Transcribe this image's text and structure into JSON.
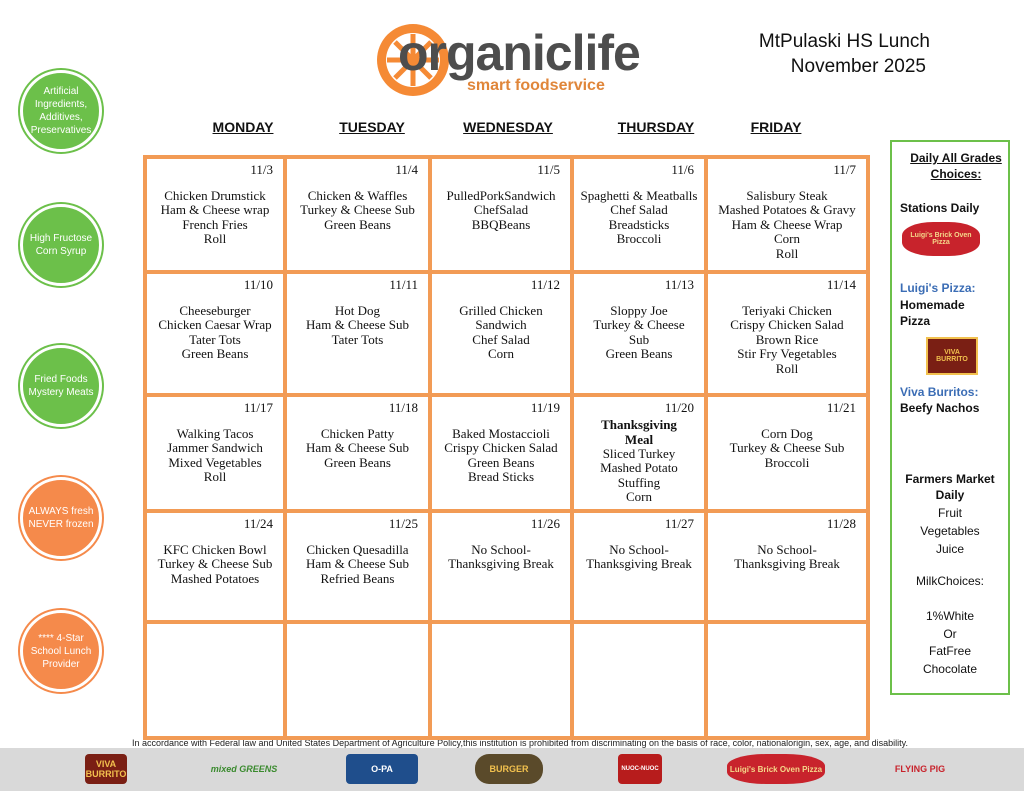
{
  "header": {
    "logo": "organiclife",
    "logo_tagline": "smart foodservice",
    "school": "MtPulaski HS Lunch",
    "month": "November 2025"
  },
  "badges": [
    "Artificial Ingredients, Additives, Preservatives",
    "High Fructose Corn Syrup",
    "Fried Foods Mystery Meats",
    "ALWAYS fresh NEVER frozen",
    "**** 4-Star School Lunch Provider"
  ],
  "calendar": {
    "days": [
      "MONDAY",
      "TUESDAY",
      "WEDNESDAY",
      "THURSDAY",
      "FRIDAY"
    ],
    "weeks": [
      [
        {
          "date": "11/3",
          "items": [
            "Chicken Drumstick",
            "Ham & Cheese wrap",
            "French Fries",
            "Roll"
          ]
        },
        {
          "date": "11/4",
          "items": [
            "Chicken & Waffles",
            "Turkey & Cheese Sub",
            "Green Beans"
          ]
        },
        {
          "date": "11/5",
          "items": [
            "PulledPorkSandwich",
            "ChefSalad",
            "BBQBeans"
          ]
        },
        {
          "date": "11/6",
          "items": [
            "Spaghetti & Meatballs",
            "Chef Salad",
            "Breadsticks",
            "Broccoli"
          ]
        },
        {
          "date": "11/7",
          "items": [
            "Salisbury Steak",
            "Mashed Potatoes & Gravy",
            "Ham & Cheese Wrap",
            "Corn",
            "Roll"
          ]
        }
      ],
      [
        {
          "date": "11/10",
          "items": [
            "Cheeseburger",
            "Chicken Caesar Wrap",
            "Tater Tots",
            "Green Beans"
          ]
        },
        {
          "date": "11/11",
          "items": [
            "Hot Dog",
            "Ham & Cheese Sub",
            "Tater Tots"
          ]
        },
        {
          "date": "11/12",
          "items": [
            "Grilled Chicken",
            "Sandwich",
            "Chef Salad",
            "Corn"
          ]
        },
        {
          "date": "11/13",
          "items": [
            "Sloppy Joe",
            "Turkey & Cheese",
            "Sub",
            "Green Beans"
          ]
        },
        {
          "date": "11/14",
          "items": [
            "Teriyaki Chicken",
            "Crispy Chicken Salad",
            "Brown Rice",
            "Stir Fry Vegetables",
            "Roll"
          ]
        }
      ],
      [
        {
          "date": "11/17",
          "items": [
            "Walking Tacos",
            "Jammer Sandwich",
            "Mixed Vegetables",
            "Roll"
          ]
        },
        {
          "date": "11/18",
          "items": [
            "Chicken Patty",
            "Ham & Cheese Sub",
            "Green Beans"
          ]
        },
        {
          "date": "11/19",
          "items": [
            "Baked Mostaccioli",
            "Crispy Chicken Salad",
            "Green Beans",
            "Bread Sticks"
          ]
        },
        {
          "date": "11/20",
          "heading": "Thanksgiving Meal",
          "items": [
            "Sliced Turkey",
            "Mashed Potato",
            "Stuffing",
            "Corn"
          ]
        },
        {
          "date": "11/21",
          "items": [
            "Corn Dog",
            "Turkey & Cheese Sub",
            "Broccoli"
          ]
        }
      ],
      [
        {
          "date": "11/24",
          "items": [
            "KFC Chicken Bowl",
            "Turkey & Cheese Sub",
            "Mashed Potatoes"
          ]
        },
        {
          "date": "11/25",
          "items": [
            "Chicken Quesadilla",
            "Ham & Cheese Sub",
            "Refried Beans"
          ]
        },
        {
          "date": "11/26",
          "items": [
            "No School-",
            "Thanksgiving Break"
          ]
        },
        {
          "date": "11/27",
          "items": [
            "No School-",
            "Thanksgiving Break"
          ]
        },
        {
          "date": "11/28",
          "items": [
            "No School-",
            "Thanksgiving Break"
          ]
        }
      ]
    ]
  },
  "sidebar": {
    "title": "Daily All Grades Choices:",
    "stations": "Stations Daily",
    "luigi_logo": "Luigi's Brick Oven Pizza",
    "luigi_label": "Luigi's Pizza:",
    "luigi_item": "Homemade Pizza",
    "viva_logo": "VIVA BURRITO",
    "viva_label": "Viva Burritos:",
    "viva_item": "Beefy Nachos",
    "farmers": "Farmers Market Daily",
    "farmers_items": [
      "Fruit",
      "Vegetables",
      "Juice"
    ],
    "milk_title": "MilkChoices:",
    "milk_items": [
      "1%White",
      "Or",
      "FatFree",
      "Chocolate"
    ]
  },
  "footer": {
    "notice": "In accordance with Federal law and United States Department of Agriculture Policy,this institution is prohibited from discriminating on the basis of race, color, nationalorigin, sex, age, and disability.",
    "logos": [
      "VIVA BURRITO",
      "mixed GREENS",
      "O-PA",
      "BURGER",
      "NUOC-NUOC",
      "Luigi's Brick Oven Pizza",
      "FLYING PIG"
    ]
  }
}
